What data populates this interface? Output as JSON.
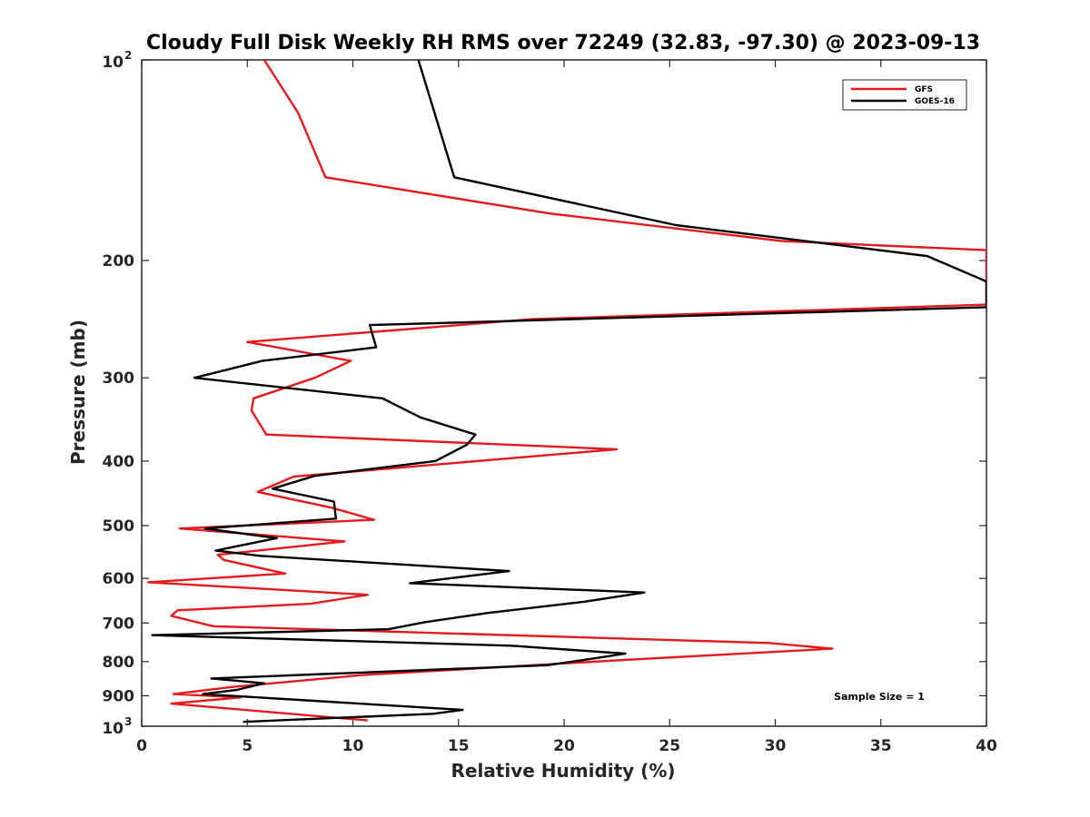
{
  "chart_data": {
    "type": "line",
    "title": "Cloudy Full Disk Weekly RH RMS over 72249 (32.83, -97.30) @ 2023-09-13",
    "xlabel": "Relative Humidity (%)",
    "ylabel": "Pressure (mb)",
    "xlim": [
      0,
      40
    ],
    "ylim": [
      100,
      1000
    ],
    "y_scale": "log",
    "y_reversed": true,
    "grid": false,
    "legend_position": "top-right",
    "x_ticks": [
      0,
      5,
      10,
      15,
      20,
      25,
      30,
      35,
      40
    ],
    "y_ticks": [
      {
        "value": 100,
        "base": "10",
        "exp": "2"
      },
      {
        "value": 200,
        "label": "200"
      },
      {
        "value": 300,
        "label": "300"
      },
      {
        "value": 400,
        "label": "400"
      },
      {
        "value": 500,
        "label": "500"
      },
      {
        "value": 600,
        "label": "600"
      },
      {
        "value": 700,
        "label": "700"
      },
      {
        "value": 800,
        "label": "800"
      },
      {
        "value": 900,
        "label": "900"
      },
      {
        "value": 1000,
        "base": "10",
        "exp": "3"
      }
    ],
    "annotation": "Sample Size = 1",
    "series": [
      {
        "name": "GFS",
        "color": "#e41a1c",
        "points": [
          [
            5.8,
            100
          ],
          [
            7.4,
            120
          ],
          [
            8.7,
            150
          ],
          [
            19.3,
            170
          ],
          [
            30.3,
            187
          ],
          [
            40,
            193
          ],
          [
            40,
            233
          ],
          [
            18.5,
            245
          ],
          [
            5.0,
            265
          ],
          [
            9.9,
            283
          ],
          [
            8.2,
            300
          ],
          [
            5.3,
            322
          ],
          [
            5.2,
            336
          ],
          [
            5.9,
            365
          ],
          [
            22.5,
            384
          ],
          [
            7.2,
            422
          ],
          [
            5.5,
            445
          ],
          [
            9.0,
            470
          ],
          [
            11.0,
            490
          ],
          [
            1.8,
            505
          ],
          [
            9.6,
            528
          ],
          [
            3.6,
            553
          ],
          [
            3.9,
            563
          ],
          [
            6.8,
            590
          ],
          [
            0.3,
            608
          ],
          [
            10.7,
            635
          ],
          [
            8.0,
            655
          ],
          [
            1.7,
            670
          ],
          [
            1.4,
            683
          ],
          [
            3.4,
            708
          ],
          [
            29.7,
            750
          ],
          [
            32.7,
            765
          ],
          [
            22.9,
            795
          ],
          [
            10.4,
            838
          ],
          [
            4.3,
            873
          ],
          [
            1.5,
            895
          ],
          [
            4.7,
            905
          ],
          [
            1.4,
            925
          ],
          [
            10.7,
            980
          ]
        ]
      },
      {
        "name": "GOES-16",
        "color": "#000000",
        "points": [
          [
            13.1,
            100
          ],
          [
            14.8,
            150
          ],
          [
            25.3,
            177
          ],
          [
            37.2,
            197
          ],
          [
            40,
            215
          ],
          [
            40,
            235
          ],
          [
            10.8,
            250
          ],
          [
            11.1,
            270
          ],
          [
            5.7,
            283
          ],
          [
            2.5,
            300
          ],
          [
            11.4,
            322
          ],
          [
            13.2,
            344
          ],
          [
            15.8,
            365
          ],
          [
            15.4,
            378
          ],
          [
            13.9,
            400
          ],
          [
            8.2,
            421
          ],
          [
            6.2,
            440
          ],
          [
            9.1,
            460
          ],
          [
            9.2,
            488
          ],
          [
            3.0,
            505
          ],
          [
            6.4,
            522
          ],
          [
            3.5,
            545
          ],
          [
            5.6,
            555
          ],
          [
            17.4,
            585
          ],
          [
            12.7,
            610
          ],
          [
            23.8,
            630
          ],
          [
            21.0,
            650
          ],
          [
            16.4,
            676
          ],
          [
            13.4,
            698
          ],
          [
            11.7,
            715
          ],
          [
            0.5,
            730
          ],
          [
            17.5,
            757
          ],
          [
            22.9,
            778
          ],
          [
            21.2,
            793
          ],
          [
            19.2,
            810
          ],
          [
            3.3,
            848
          ],
          [
            5.8,
            862
          ],
          [
            4.5,
            882
          ],
          [
            2.9,
            895
          ],
          [
            15.2,
            945
          ],
          [
            13.8,
            958
          ],
          [
            4.8,
            985
          ]
        ]
      }
    ]
  }
}
